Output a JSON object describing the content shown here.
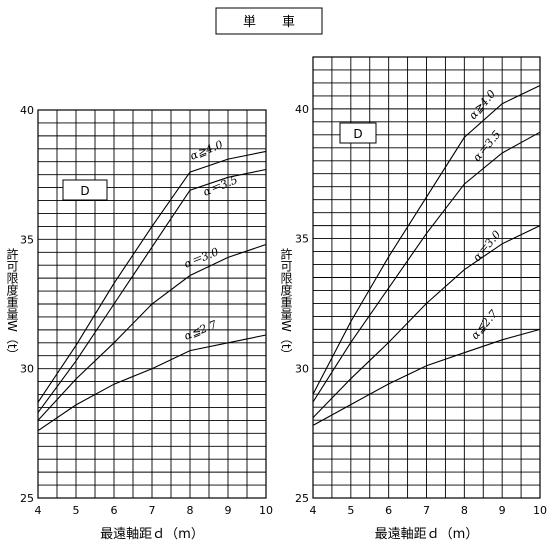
{
  "page": {
    "title": "単　　車"
  },
  "chart_data": [
    {
      "type": "line",
      "panel_label": "D",
      "xlabel": "最遠軸距ｄ（m）",
      "ylabel": "許可限度重量W（t）",
      "xlim": [
        4,
        10
      ],
      "ylim": [
        25,
        40
      ],
      "x_ticks": [
        "4",
        "5",
        "6",
        "7",
        "8",
        "9",
        "10"
      ],
      "y_ticks": [
        "25",
        "30",
        "35",
        "40"
      ],
      "grid": true,
      "series": [
        {
          "name": "α≧4.0",
          "points": [
            [
              4,
              28.7
            ],
            [
              5,
              30.9
            ],
            [
              6,
              33.3
            ],
            [
              7,
              35.5
            ],
            [
              8,
              37.6
            ],
            [
              9,
              38.1
            ],
            [
              10,
              38.4
            ]
          ]
        },
        {
          "name": "α＝3.5",
          "points": [
            [
              4,
              28.3
            ],
            [
              5,
              30.3
            ],
            [
              6,
              32.5
            ],
            [
              7,
              34.7
            ],
            [
              8,
              36.9
            ],
            [
              9,
              37.4
            ],
            [
              10,
              37.7
            ]
          ]
        },
        {
          "name": "α＝3.0",
          "points": [
            [
              4,
              28.0
            ],
            [
              5,
              29.6
            ],
            [
              6,
              31.0
            ],
            [
              7,
              32.5
            ],
            [
              8,
              33.6
            ],
            [
              9,
              34.3
            ],
            [
              10,
              34.8
            ]
          ]
        },
        {
          "name": "α≦2.7",
          "points": [
            [
              4,
              27.6
            ],
            [
              5,
              28.6
            ],
            [
              6,
              29.4
            ],
            [
              7,
              30.0
            ],
            [
              8,
              30.7
            ],
            [
              9,
              31.0
            ],
            [
              10,
              31.3
            ]
          ]
        }
      ]
    },
    {
      "type": "line",
      "panel_label": "D",
      "xlabel": "最遠軸距ｄ（m）",
      "ylabel": "許可限度重量W（t）",
      "xlim": [
        4,
        10
      ],
      "ylim": [
        25,
        42
      ],
      "x_ticks": [
        "4",
        "5",
        "6",
        "7",
        "8",
        "9",
        "10"
      ],
      "y_ticks": [
        "25",
        "30",
        "35",
        "40"
      ],
      "grid": true,
      "series": [
        {
          "name": "α≧4.0",
          "points": [
            [
              4,
              29.0
            ],
            [
              5,
              31.8
            ],
            [
              6,
              34.3
            ],
            [
              7,
              36.6
            ],
            [
              8,
              38.9
            ],
            [
              9,
              40.2
            ],
            [
              10,
              40.9
            ]
          ]
        },
        {
          "name": "α＝3.5",
          "points": [
            [
              4,
              28.7
            ],
            [
              5,
              31.0
            ],
            [
              6,
              33.1
            ],
            [
              7,
              35.2
            ],
            [
              8,
              37.1
            ],
            [
              9,
              38.3
            ],
            [
              10,
              39.1
            ]
          ]
        },
        {
          "name": "α＝3.0",
          "points": [
            [
              4,
              28.1
            ],
            [
              5,
              29.6
            ],
            [
              6,
              31.0
            ],
            [
              7,
              32.5
            ],
            [
              8,
              33.8
            ],
            [
              9,
              34.8
            ],
            [
              10,
              35.5
            ]
          ]
        },
        {
          "name": "α≦2.7",
          "points": [
            [
              4,
              27.8
            ],
            [
              5,
              28.6
            ],
            [
              6,
              29.4
            ],
            [
              7,
              30.1
            ],
            [
              8,
              30.6
            ],
            [
              9,
              31.1
            ],
            [
              10,
              31.5
            ]
          ]
        }
      ]
    }
  ]
}
